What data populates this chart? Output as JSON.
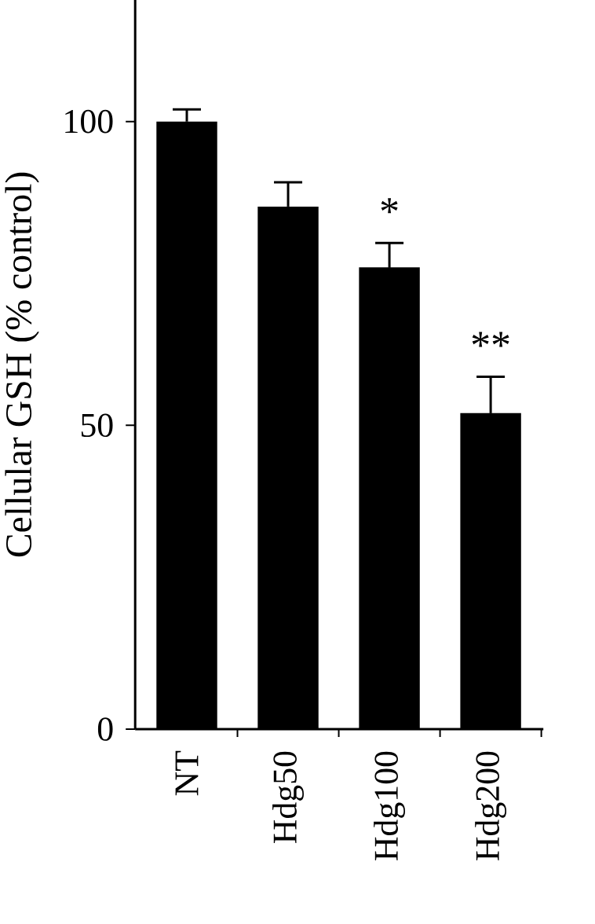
{
  "chart_data": {
    "type": "bar",
    "ylabel": "Cellular GSH (% control)",
    "categories": [
      "NT",
      "Hdg50",
      "Hdg100",
      "Hdg200"
    ],
    "values": [
      100,
      86,
      76,
      52
    ],
    "errors": [
      2,
      4,
      4,
      6
    ],
    "color": "#000000",
    "ylim": [
      0,
      120
    ],
    "yticks": [
      0,
      50,
      100
    ],
    "annotations": [
      {
        "text": "*",
        "x": "Hdg100",
        "y": 76
      },
      {
        "text": "**",
        "x": "Hdg200",
        "y": 52
      }
    ]
  }
}
